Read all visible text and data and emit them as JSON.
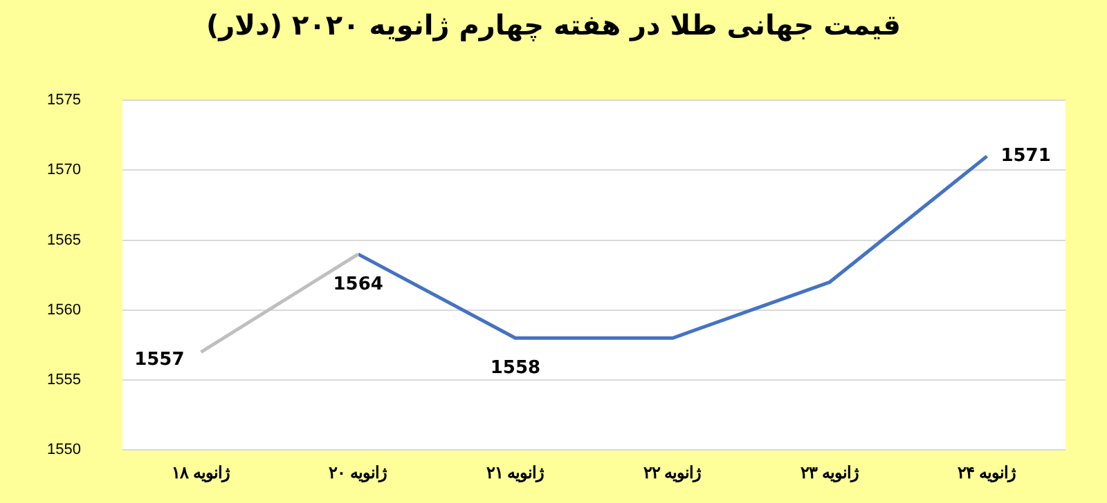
{
  "chart_data": {
    "type": "line",
    "title": "قیمت جهانی طلا در هفته چهارم ژانویه ۲۰۲۰ (دلار)",
    "categories": [
      "۱۸ ژانویه",
      "۲۰ ژانویه",
      "۲۱ ژانویه",
      "۲۲ ژانویه",
      "۲۳ ژانویه",
      "۲۴ ژانویه"
    ],
    "series": [
      {
        "color": "#bfbfbf",
        "values": [
          1557,
          1564,
          null,
          null,
          null,
          null
        ],
        "value_labels": [
          "1557",
          null,
          null,
          null,
          null,
          null
        ]
      },
      {
        "color": "#4472c4",
        "values": [
          null,
          1564,
          1558,
          1558,
          1562,
          1571
        ],
        "value_labels": [
          null,
          "1564",
          "1558",
          null,
          null,
          "1571"
        ]
      }
    ],
    "ylim": [
      1550,
      1575
    ],
    "yticks": [
      1550,
      1555,
      1560,
      1565,
      1570,
      1575
    ],
    "grid": "y",
    "legend": false,
    "marker": "none",
    "line_style": "solid"
  }
}
